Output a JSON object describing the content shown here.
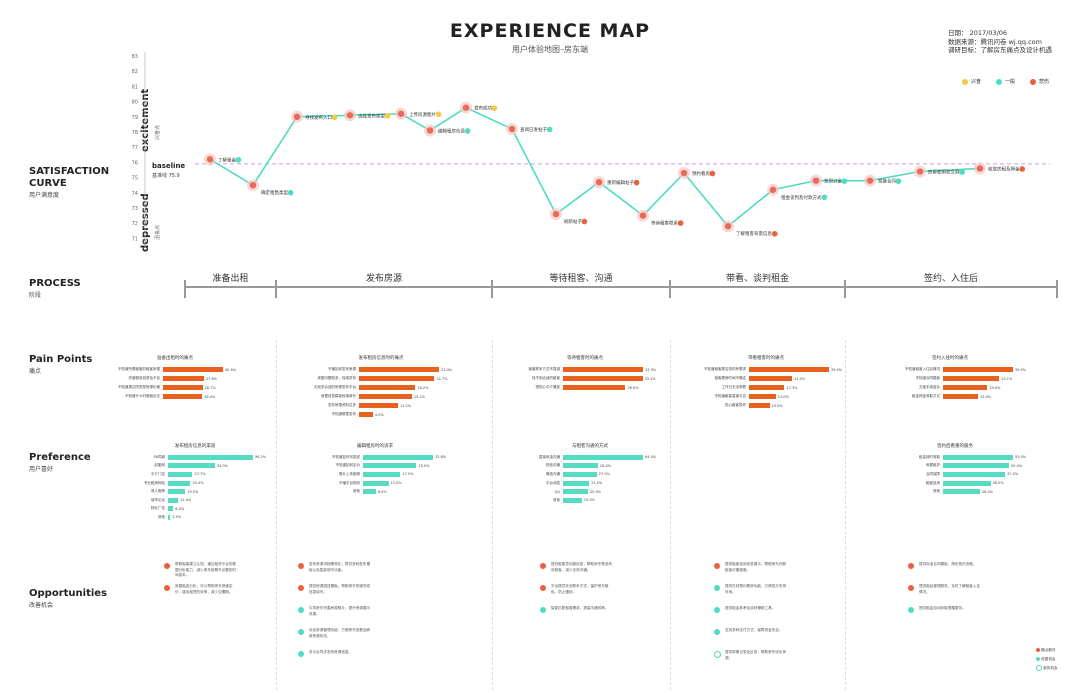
{
  "header": {
    "title": "EXPERIENCE MAP",
    "subtitle": "用户体验地图–房东端"
  },
  "meta": {
    "date": "日期：   2017/03/06",
    "source": "数据来源：腾讯问卷 wj.qq.com",
    "goal": "调研目标：了解房东痛点及设计机遇"
  },
  "legend_top": {
    "happy": "兴奋",
    "neutral": "一般",
    "sad": "悲伤"
  },
  "satisfaction": {
    "title_line1": "SATISFACTION",
    "title_line2": "CURVE",
    "sub": "用户满意度",
    "excitement": "excitement",
    "excitement_cn": "兴奋点",
    "depressed": "depressed",
    "depressed_cn": "沮丧点",
    "baseline": "baseline",
    "baseline_cn": "基准线 75.9"
  },
  "chart_data": {
    "type": "line",
    "ylim": [
      70.5,
      83
    ],
    "yticks": [
      71,
      72,
      73,
      74,
      75,
      76,
      77,
      78,
      79,
      80,
      81,
      82,
      83
    ],
    "baseline": 75.9,
    "points": [
      {
        "label": "了解租金",
        "y": 76.2,
        "mood": "neutral"
      },
      {
        "label": "确定租售类型",
        "y": 74.5,
        "mood": "neutral"
      },
      {
        "label": "寻找发布入口",
        "y": 79.0,
        "mood": "happy"
      },
      {
        "label": "选择发布类型",
        "y": 79.1,
        "mood": "happy"
      },
      {
        "label": "上传房源图片",
        "y": 79.2,
        "mood": "happy"
      },
      {
        "label": "编辑租房信息",
        "y": 78.1,
        "mood": "neutral"
      },
      {
        "label": "发布成功",
        "y": 79.6,
        "mood": "happy"
      },
      {
        "label": "查阅已发帖子",
        "y": 78.2,
        "mood": "neutral"
      },
      {
        "label": "刷新帖子",
        "y": 72.6,
        "mood": "sad"
      },
      {
        "label": "重新编辑帖子",
        "y": 74.7,
        "mood": "sad"
      },
      {
        "label": "等待租客联系",
        "y": 72.5,
        "mood": "sad"
      },
      {
        "label": "预约看房",
        "y": 75.3,
        "mood": "sad"
      },
      {
        "label": "了解租客背景信息",
        "y": 71.8,
        "mood": "sad"
      },
      {
        "label": "租金谈判及付款方式",
        "y": 74.2,
        "mood": "neutral"
      },
      {
        "label": "签到订金",
        "y": 74.8,
        "mood": "neutral"
      },
      {
        "label": "准备合同",
        "y": 74.8,
        "mood": "neutral"
      },
      {
        "label": "房屋使用权交割",
        "y": 75.4,
        "mood": "neutral"
      },
      {
        "label": "收取房租及押金",
        "y": 75.6,
        "mood": "sad"
      }
    ]
  },
  "process": {
    "title": "PROCESS",
    "sub": "阶段",
    "stages": [
      "准备出租",
      "发布房源",
      "等待租客、沟通",
      "带看、谈判租金",
      "签约、入住后"
    ]
  },
  "pain": {
    "title": "Pain Points",
    "sub": "痛点",
    "charts": [
      {
        "title": "准备出租时的痛点",
        "bars": [
          {
            "l": "不知道所需租客的租客来源",
            "v": 40.5
          },
          {
            "l": "托管服务品质及不足",
            "v": 27.6
          },
          {
            "l": "不知道周边同类型房源价格",
            "v": 26.7
          },
          {
            "l": "不知道什么时候租出去",
            "v": 26.4
          }
        ]
      },
      {
        "title": "发布租房信息时的痛点",
        "bars": [
          {
            "l": "不懂如何发布房源",
            "v": 23.0
          },
          {
            "l": "房屋问题较多，较难发布",
            "v": 21.7
          },
          {
            "l": "无较多合适的房源发布平台",
            "v": 16.2
          },
          {
            "l": "房屋信息模板较难填写",
            "v": 15.2
          },
          {
            "l": "发布房源资料过多",
            "v": 11.2
          },
          {
            "l": "不知道哪里发布",
            "v": 4.0
          }
        ]
      },
      {
        "title": "等待租客时的痛点",
        "bars": [
          {
            "l": "租客联系方式不靠谱",
            "v": 33.3
          },
          {
            "l": "找不到合适的租客",
            "v": 33.1
          },
          {
            "l": "很担心中介骚扰",
            "v": 26.0
          }
        ]
      },
      {
        "title": "带看租客时的痛点",
        "bars": [
          {
            "l": "不知道租客是否真的有需求",
            "v": 39.0
          },
          {
            "l": "租客看房时间不确定",
            "v": 21.0
          },
          {
            "l": "工作日无法带看",
            "v": 17.3
          },
          {
            "l": "不知道租客靠谱与否",
            "v": 13.0
          },
          {
            "l": "担心租客损坏",
            "v": 10.0
          }
        ]
      },
      {
        "title": "签约入住时的痛点",
        "bars": [
          {
            "l": "不知道租客入住后情况",
            "v": 30.0
          },
          {
            "l": "不知道合同模板",
            "v": 24.1
          },
          {
            "l": "交接手续复杂",
            "v": 19.0
          },
          {
            "l": "租金押金收取方式",
            "v": 15.0
          }
        ]
      }
    ]
  },
  "pref": {
    "title": "Preference",
    "sub": "用户喜好",
    "charts": [
      {
        "title": "发布租房信息的渠道",
        "bars": [
          {
            "l": "58同城",
            "v": 96.2
          },
          {
            "l": "赶集网",
            "v": 53.0
          },
          {
            "l": "中介门店",
            "v": 27.7
          },
          {
            "l": "专业租房网站",
            "v": 25.4
          },
          {
            "l": "熟人推荐",
            "v": 19.5
          },
          {
            "l": "城市论坛",
            "v": 11.4
          },
          {
            "l": "物业广告",
            "v": 6.0
          },
          {
            "l": "其他",
            "v": 2.5
          }
        ]
      },
      {
        "title": "编辑租房时的诉求",
        "bars": [
          {
            "l": "不知道如何写描述",
            "v": 32.8
          },
          {
            "l": "不知道如何定价",
            "v": 25.0
          },
          {
            "l": "照片上传困难",
            "v": 17.5
          },
          {
            "l": "不懂平台规则",
            "v": 12.0
          },
          {
            "l": "其他",
            "v": 6.0
          }
        ]
      },
      {
        "title": "与租客沟通的方式",
        "bars": [
          {
            "l": "直接电话沟通",
            "v": 64.0
          },
          {
            "l": "短信沟通",
            "v": 28.0
          },
          {
            "l": "微信沟通",
            "v": 27.0
          },
          {
            "l": "平台消息",
            "v": 21.0
          },
          {
            "l": "QQ",
            "v": 20.0
          },
          {
            "l": "其他",
            "v": 15.0
          }
        ]
      },
      {
        "title": "签约后看重的服务",
        "bars": [
          {
            "l": "租金按时收取",
            "v": 53.0
          },
          {
            "l": "房屋维护",
            "v": 50.0
          },
          {
            "l": "合同保障",
            "v": 47.0
          },
          {
            "l": "租客信用",
            "v": 36.0
          },
          {
            "l": "其他",
            "v": 28.0
          }
        ]
      }
    ]
  },
  "opp": {
    "title": "Opportunities",
    "sub": "改善机会",
    "items": [
      {
        "col": 0,
        "row": 0,
        "mood": "sad",
        "text": "帮助租客建立认知，通过租赁平台的数据分析能力，减少房东前期不必要的时间成本。"
      },
      {
        "col": 0,
        "row": 1,
        "mood": "sad",
        "text": "房屋租金分析，可以帮助房东快速定价，增加租赁的效率，减少空置期。"
      },
      {
        "col": 1,
        "row": 0,
        "mood": "sad",
        "text": "发布房源流程需简化，提供多种发布模板以及智能填写功能。"
      },
      {
        "col": 1,
        "row": 1,
        "mood": "sad",
        "text": "提供房源描述模板，帮助房东快速完成信息填写。"
      },
      {
        "col": 1,
        "row": 2,
        "mood": "neutral",
        "text": "引导房东完善房源照片，提升房源展示效果。"
      },
      {
        "col": 1,
        "row": 3,
        "mood": "neutral",
        "text": "优化房源管理功能，方便房东查看及刷新房源状态。"
      },
      {
        "col": 1,
        "row": 4,
        "mood": "neutral",
        "text": "多平台同步发布房源信息。"
      },
      {
        "col": 2,
        "row": 0,
        "mood": "sad",
        "text": "提供租客意向度信息，帮助房东筛选有效租客，减少无效沟通。"
      },
      {
        "col": 2,
        "row": 1,
        "mood": "sad",
        "text": "平台提供安全联系方式，保护房东隐私，防止骚扰。"
      },
      {
        "col": 2,
        "row": 2,
        "mood": "neutral",
        "text": "智能匹配租客需求，提高沟通效率。"
      },
      {
        "col": 3,
        "row": 0,
        "mood": "sad",
        "text": "提供租客信用信息展示，帮助房东判断租客可靠程度。"
      },
      {
        "col": 3,
        "row": 1,
        "mood": "neutral",
        "text": "提供在线预约看房功能，方便双方安排时间。"
      },
      {
        "col": 3,
        "row": 2,
        "mood": "neutral",
        "text": "提供租金参考及谈判辅助工具。"
      },
      {
        "col": 3,
        "row": 3,
        "mood": "neutral",
        "text": "支持多种支付方式，保障资金安全。"
      },
      {
        "col": 3,
        "row": 4,
        "mood": "happy",
        "text": "提供带看记录及反馈，帮助房东优化房源。"
      },
      {
        "col": 4,
        "row": 0,
        "mood": "sad",
        "text": "提供标准合同模板，简化签约流程。"
      },
      {
        "col": 4,
        "row": 1,
        "mood": "sad",
        "text": "提供租后管理服务，及时了解租客入住情况。"
      },
      {
        "col": 4,
        "row": 2,
        "mood": "neutral",
        "text": "提供租金自动收取提醒服务。"
      }
    ],
    "legend": {
      "sad": "痛点解决",
      "neutral": "改善机会",
      "happy": "新的机会"
    }
  },
  "colors": {
    "sad": "#e8613a",
    "neutral": "#4fdcc1",
    "happy": "#f6c94a",
    "line": "#4fdcc1",
    "baseline": "#c9a0d8",
    "bar_orange": "#e8611f",
    "bar_teal": "#55dcc2"
  }
}
